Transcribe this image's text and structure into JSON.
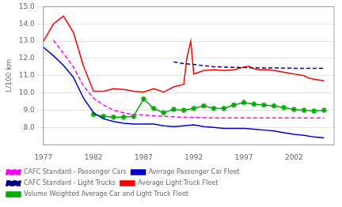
{
  "chart_data": {
    "type": "line",
    "ylabel": "L/100 km",
    "xlim": [
      1977,
      2006
    ],
    "xticks": [
      1977,
      1982,
      1987,
      1992,
      1997,
      2002
    ],
    "ylim": [
      7.0,
      15.0
    ],
    "yticks": [
      {
        "value": 8.0,
        "label": "8.0"
      },
      {
        "value": 9.0,
        "label": "9.0"
      },
      {
        "value": 10.0,
        "label": "10.0"
      },
      {
        "value": 11.0,
        "label": "11.0"
      },
      {
        "value": 12.0,
        "label": "12.0"
      },
      {
        "value": 13.0,
        "label": "13.0"
      },
      {
        "value": 14.0,
        "label": "14.0"
      },
      {
        "value": 15.0,
        "label": "15.0"
      }
    ],
    "grid": "y",
    "legend": "bottom",
    "series": [
      {
        "name": "CAFC Standard - Passenger Cars",
        "color": "#ff00ff",
        "line_style": "dashed",
        "x": [
          1978,
          1979,
          1980,
          1981,
          1982,
          1983,
          1984,
          1985,
          1986,
          1987,
          1988,
          1989,
          1990,
          1991,
          1992,
          1993,
          1994,
          1995,
          1996,
          1997,
          1998,
          1999,
          2000,
          2001,
          2002,
          2003,
          2004,
          2005
        ],
        "values": [
          13.05,
          12.3,
          11.5,
          10.4,
          9.7,
          9.3,
          9.0,
          8.85,
          8.75,
          8.72,
          8.68,
          8.65,
          8.62,
          8.6,
          8.58,
          8.56,
          8.55,
          8.55,
          8.55,
          8.55,
          8.55,
          8.55,
          8.55,
          8.55,
          8.55,
          8.55,
          8.55,
          8.55
        ]
      },
      {
        "name": "Average Passenger Car Fleet",
        "color": "#0000cc",
        "line_style": "solid",
        "x": [
          1977,
          1978,
          1979,
          1980,
          1981,
          1982,
          1983,
          1984,
          1985,
          1986,
          1987,
          1988,
          1989,
          1990,
          1991,
          1992,
          1993,
          1994,
          1995,
          1996,
          1997,
          1998,
          1999,
          2000,
          2001,
          2002,
          2003,
          2004,
          2005
        ],
        "values": [
          12.65,
          12.15,
          11.6,
          10.9,
          9.7,
          8.85,
          8.5,
          8.35,
          8.25,
          8.2,
          8.2,
          8.2,
          8.1,
          8.05,
          8.1,
          8.15,
          8.05,
          8.0,
          7.95,
          7.95,
          7.95,
          7.9,
          7.85,
          7.8,
          7.7,
          7.6,
          7.55,
          7.45,
          7.4
        ]
      },
      {
        "name": "CAFC Standard - Light Trucks",
        "color": "#00008b",
        "line_style": "dashed",
        "x": [
          1990,
          1991,
          1992,
          1993,
          1994,
          1995,
          1996,
          1997,
          1998,
          1999,
          2000,
          2001,
          2002,
          2003,
          2004,
          2005
        ],
        "values": [
          11.8,
          11.7,
          11.65,
          11.58,
          11.52,
          11.5,
          11.48,
          11.47,
          11.46,
          11.45,
          11.45,
          11.44,
          11.43,
          11.42,
          11.42,
          11.42
        ]
      },
      {
        "name": "Average Light Truck Fleet",
        "color": "#ff0000",
        "line_style": "solid",
        "x": [
          1977,
          1978,
          1979,
          1980,
          1981,
          1982,
          1983,
          1984,
          1985,
          1986,
          1987,
          1988,
          1989,
          1990,
          1991,
          1991.3,
          1991.7,
          1992,
          1993,
          1994,
          1995,
          1996,
          1997,
          1997.5,
          1998,
          1998.5,
          1999,
          1999.5,
          2000,
          2000.5,
          2001,
          2001.5,
          2002,
          2002.5,
          2003,
          2003.5,
          2004,
          2005
        ],
        "values": [
          13.0,
          14.0,
          14.45,
          13.5,
          11.55,
          10.1,
          10.1,
          10.25,
          10.2,
          10.1,
          10.05,
          10.25,
          10.05,
          10.35,
          10.5,
          12.0,
          13.0,
          11.1,
          11.3,
          11.35,
          11.3,
          11.35,
          11.5,
          11.55,
          11.4,
          11.35,
          11.35,
          11.35,
          11.3,
          11.25,
          11.2,
          11.15,
          11.1,
          11.05,
          11.0,
          10.85,
          10.8,
          10.7
        ]
      },
      {
        "name": "Volume Weighted Average Car and Light Truck Fleet",
        "color": "#00aa00",
        "line_style": "solid",
        "marker": "star",
        "x": [
          1982,
          1983,
          1984,
          1985,
          1986,
          1987,
          1988,
          1989,
          1990,
          1991,
          1992,
          1993,
          1994,
          1995,
          1996,
          1997,
          1998,
          1999,
          2000,
          2001,
          2002,
          2003,
          2004,
          2005
        ],
        "values": [
          8.75,
          8.65,
          8.6,
          8.6,
          8.65,
          9.65,
          9.1,
          8.85,
          9.05,
          9.0,
          9.1,
          9.25,
          9.1,
          9.1,
          9.3,
          9.45,
          9.35,
          9.3,
          9.25,
          9.15,
          9.05,
          9.0,
          8.95,
          9.0
        ]
      }
    ]
  }
}
